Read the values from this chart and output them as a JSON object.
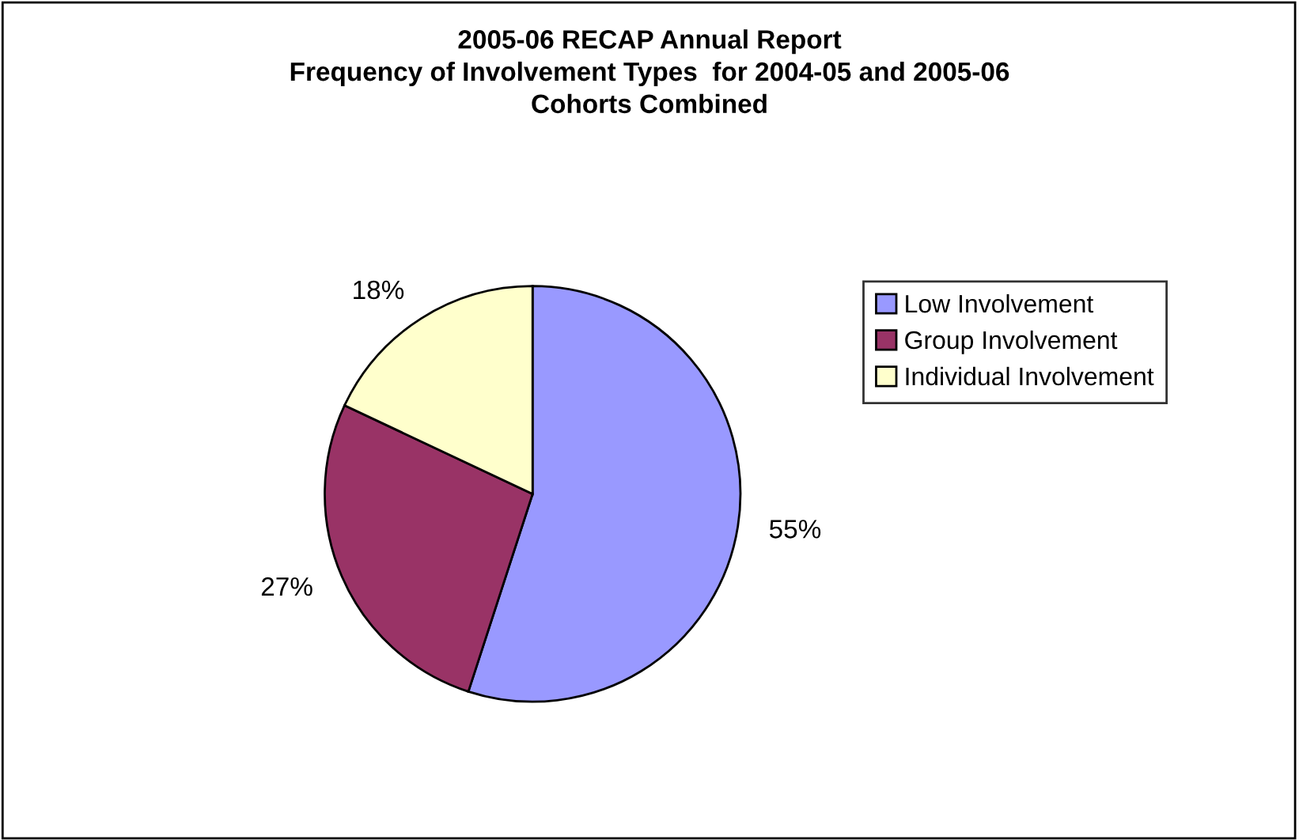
{
  "chart_data": {
    "type": "pie",
    "title": "2005-06 RECAP Annual Report\nFrequency of Involvement Types  for 2004-05 and 2005-06\nCohorts Combined",
    "categories": [
      "Low Involvement",
      "Group Involvement",
      "Individual Involvement"
    ],
    "values": [
      55,
      27,
      18
    ],
    "value_labels": [
      "55%",
      "27%",
      "18%"
    ],
    "colors": [
      "#9999ff",
      "#993366",
      "#ffffcc"
    ],
    "legend": "right"
  }
}
